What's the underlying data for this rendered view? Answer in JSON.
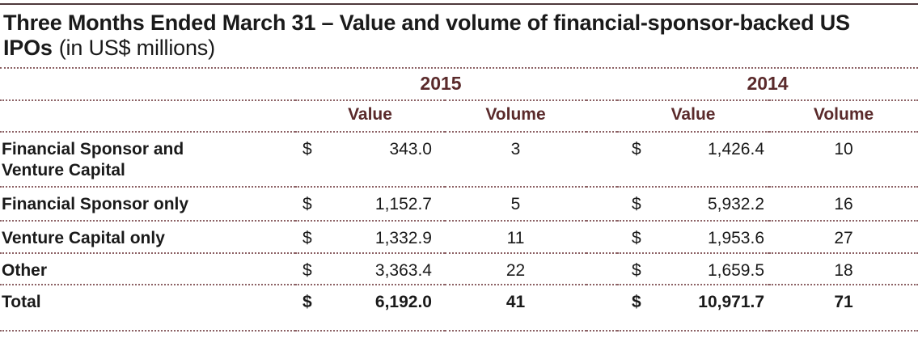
{
  "colors": {
    "accent_text": "#5a2a2b",
    "dotted_line": "#8c6164",
    "top_rule": "#4f393b",
    "body_text": "#1a1a1a"
  },
  "title": {
    "line1_bold": "Three Months Ended March 31 – Value and volume of financial-sponsor-backed",
    "line2_bold": "US IPOs",
    "line2_normal": "(in US$ millions)"
  },
  "table": {
    "currency_symbol": "$",
    "year_headers": [
      "2015",
      "2014"
    ],
    "column_headers": [
      "Value",
      "Volume",
      "Value",
      "Volume"
    ],
    "rows": [
      {
        "label": "Financial Sponsor and Venture Capital",
        "value_2015": "343.0",
        "volume_2015": "3",
        "value_2014": "1,426.4",
        "volume_2014": "10"
      },
      {
        "label": "Financial Sponsor only",
        "value_2015": "1,152.7",
        "volume_2015": "5",
        "value_2014": "5,932.2",
        "volume_2014": "16"
      },
      {
        "label": "Venture Capital only",
        "value_2015": "1,332.9",
        "volume_2015": "11",
        "value_2014": "1,953.6",
        "volume_2014": "27"
      },
      {
        "label": "Other",
        "value_2015": "3,363.4",
        "volume_2015": "22",
        "value_2014": "1,659.5",
        "volume_2014": "18"
      },
      {
        "label": "Total",
        "value_2015": "6,192.0",
        "volume_2015": "41",
        "value_2014": "10,971.7",
        "volume_2014": "71"
      }
    ]
  }
}
